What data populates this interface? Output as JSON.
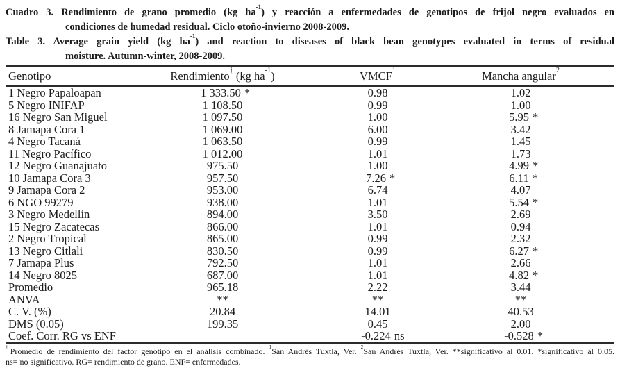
{
  "captions": {
    "spanish": {
      "lines": [
        {
          "parts": [
            {
              "t": "Cuadro 3. Rendimiento de grano promedio (kg ha"
            },
            {
              "sup": "-1"
            },
            {
              "t": ") y reacción a enfermedades de genotipos de frijol negro evaluados en"
            }
          ]
        },
        {
          "parts": [
            {
              "t": "condiciones de humedad residual. Ciclo otoño-invierno 2008-2009."
            }
          ]
        }
      ]
    },
    "english": {
      "lines": [
        {
          "parts": [
            {
              "t": "Table 3. Average grain yield (kg ha"
            },
            {
              "sup": "-1"
            },
            {
              "t": ") and reaction to diseases of black bean genotypes evaluated in terms of residual"
            }
          ]
        },
        {
          "parts": [
            {
              "t": "moisture. Autumn-winter, 2008-2009."
            }
          ]
        }
      ]
    }
  },
  "table": {
    "columns": [
      {
        "slug": "genotipo",
        "parts": [
          {
            "t": "Genotipo"
          }
        ]
      },
      {
        "slug": "rendimiento",
        "parts": [
          {
            "t": "Rendimiento"
          },
          {
            "sup": "†"
          },
          {
            "t": " (kg ha"
          },
          {
            "sup": "-1"
          },
          {
            "t": ")"
          }
        ]
      },
      {
        "slug": "vmcf",
        "parts": [
          {
            "t": "VMCF"
          },
          {
            "sup": "1"
          }
        ]
      },
      {
        "slug": "mancha-angular",
        "parts": [
          {
            "t": "Mancha angular"
          },
          {
            "sup": "2"
          }
        ]
      }
    ],
    "rows": [
      {
        "genotype": "1 Negro Papaloapan",
        "yield": "1 333.50",
        "yield_mark": "*",
        "vmcf": "0.98",
        "vmcf_mark": "",
        "angular": "1.02",
        "angular_mark": ""
      },
      {
        "genotype": "5 Negro INIFAP",
        "yield": "1 108.50",
        "yield_mark": "",
        "vmcf": "0.99",
        "vmcf_mark": "",
        "angular": "1.00",
        "angular_mark": ""
      },
      {
        "genotype": "16 Negro San Miguel",
        "yield": "1 097.50",
        "yield_mark": "",
        "vmcf": "1.00",
        "vmcf_mark": "",
        "angular": "5.95",
        "angular_mark": "*"
      },
      {
        "genotype": "8 Jamapa Cora 1",
        "yield": "1 069.00",
        "yield_mark": "",
        "vmcf": "6.00",
        "vmcf_mark": "",
        "angular": "3.42",
        "angular_mark": ""
      },
      {
        "genotype": "4 Negro Tacaná",
        "yield": "1 063.50",
        "yield_mark": "",
        "vmcf": "0.99",
        "vmcf_mark": "",
        "angular": "1.45",
        "angular_mark": ""
      },
      {
        "genotype": "11 Negro Pacífico",
        "yield": "1 012.00",
        "yield_mark": "",
        "vmcf": "1.01",
        "vmcf_mark": "",
        "angular": "1.73",
        "angular_mark": ""
      },
      {
        "genotype": "12 Negro Guanajuato",
        "yield": "975.50",
        "yield_mark": "",
        "vmcf": "1.00",
        "vmcf_mark": "",
        "angular": "4.99",
        "angular_mark": "*"
      },
      {
        "genotype": "10 Jamapa Cora 3",
        "yield": "957.50",
        "yield_mark": "",
        "vmcf": "7.26",
        "vmcf_mark": "*",
        "angular": "6.11",
        "angular_mark": "*"
      },
      {
        "genotype": "9 Jamapa Cora 2",
        "yield": "953.00",
        "yield_mark": "",
        "vmcf": "6.74",
        "vmcf_mark": "",
        "angular": "4.07",
        "angular_mark": ""
      },
      {
        "genotype": "6 NGO 99279",
        "yield": "938.00",
        "yield_mark": "",
        "vmcf": "1.01",
        "vmcf_mark": "",
        "angular": "5.54",
        "angular_mark": "*"
      },
      {
        "genotype": "3 Negro Medellín",
        "yield": "894.00",
        "yield_mark": "",
        "vmcf": "3.50",
        "vmcf_mark": "",
        "angular": "2.69",
        "angular_mark": ""
      },
      {
        "genotype": "15 Negro Zacatecas",
        "yield": "866.00",
        "yield_mark": "",
        "vmcf": "1.01",
        "vmcf_mark": "",
        "angular": "0.94",
        "angular_mark": ""
      },
      {
        "genotype": "2 Negro Tropical",
        "yield": "865.00",
        "yield_mark": "",
        "vmcf": "0.99",
        "vmcf_mark": "",
        "angular": "2.32",
        "angular_mark": ""
      },
      {
        "genotype": "13 Negro Citlali",
        "yield": "830.50",
        "yield_mark": "",
        "vmcf": "0.99",
        "vmcf_mark": "",
        "angular": "6.27",
        "angular_mark": "*"
      },
      {
        "genotype": "7 Jamapa Plus",
        "yield": "792.50",
        "yield_mark": "",
        "vmcf": "1.01",
        "vmcf_mark": "",
        "angular": "2.66",
        "angular_mark": ""
      },
      {
        "genotype": "14 Negro 8025",
        "yield": "687.00",
        "yield_mark": "",
        "vmcf": "1.01",
        "vmcf_mark": "",
        "angular": "4.82",
        "angular_mark": "*"
      },
      {
        "genotype": "Promedio",
        "yield": "965.18",
        "yield_mark": "",
        "vmcf": "2.22",
        "vmcf_mark": "",
        "angular": "3.44",
        "angular_mark": ""
      },
      {
        "genotype": "ANVA",
        "yield": "**",
        "yield_mark": "",
        "vmcf": "**",
        "vmcf_mark": "",
        "angular": "**",
        "angular_mark": ""
      },
      {
        "genotype": "C. V. (%)",
        "yield": "20.84",
        "yield_mark": "",
        "vmcf": "14.01",
        "vmcf_mark": "",
        "angular": "40.53",
        "angular_mark": ""
      },
      {
        "genotype": "DMS (0.05)",
        "yield": "199.35",
        "yield_mark": "",
        "vmcf": "0.45",
        "vmcf_mark": "",
        "angular": "2.00",
        "angular_mark": ""
      },
      {
        "genotype": "Coef. Corr. RG vs ENF",
        "yield": "",
        "yield_mark": "",
        "vmcf": "-0.224",
        "vmcf_mark": "ns",
        "angular": "-0.528",
        "angular_mark": "*"
      }
    ]
  },
  "footnote": {
    "lines": [
      {
        "parts": [
          {
            "sup": "†"
          },
          {
            "t": "Promedio de rendimiento del factor genotipo en el análisis combinado. "
          },
          {
            "sup": "1"
          },
          {
            "t": "San Andrés Tuxtla, Ver. "
          },
          {
            "sup": "2"
          },
          {
            "t": "San Andrés Tuxtla, Ver.  **significativo al 0.01. *significativo al 0.05."
          }
        ]
      },
      {
        "parts": [
          {
            "t": "ns= no significativo. RG= rendimiento de grano. ENF= enfermedades."
          }
        ]
      }
    ]
  },
  "colors": {
    "text": "#1b1b1b",
    "rule": "#2b2b2b",
    "background": "#ffffff"
  }
}
